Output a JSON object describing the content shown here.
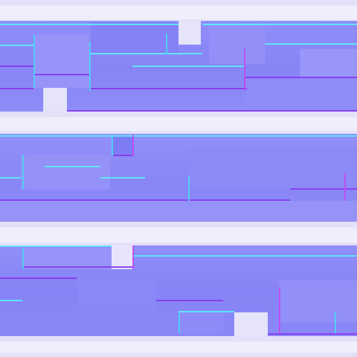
{
  "colors": {
    "base": "#8a88f8",
    "light": "#e2def8",
    "highlight": "#5ee8f8",
    "shadow": "#8a3cf0",
    "accent_magenta": "#c04cf0"
  },
  "texture": {
    "kind": "normal-map",
    "bands": 3,
    "orientation": "horizontal"
  }
}
